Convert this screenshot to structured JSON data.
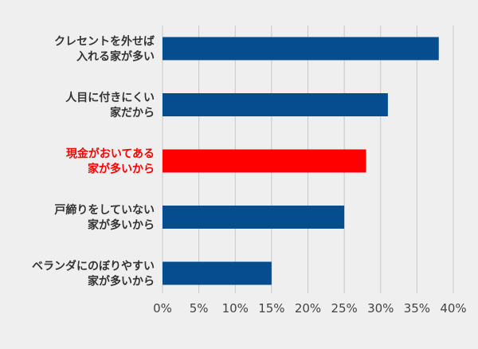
{
  "chart_data": {
    "type": "bar",
    "orientation": "horizontal",
    "categories": [
      [
        "クレセントを外せば",
        "入れる家が多い"
      ],
      [
        "人目に付きにくい",
        "家だから"
      ],
      [
        "現金がおいてある",
        "家が多いから"
      ],
      [
        "戸締りをしていない",
        "家が多いから"
      ],
      [
        "ベランダにのぼりやすい",
        "家が多いから"
      ]
    ],
    "values": [
      38,
      31,
      28,
      25,
      15
    ],
    "highlight_index": 2,
    "xlim": [
      0,
      40
    ],
    "xticks": [
      0,
      5,
      10,
      15,
      20,
      25,
      30,
      35,
      40
    ],
    "tick_suffix": "%",
    "grid": "vertical",
    "title": "",
    "xlabel": "",
    "ylabel": "",
    "colors": {
      "bar": "#064d8f",
      "highlight": "#ff0000",
      "grid": "#c8c8c8",
      "label": "#333333",
      "highlight_label": "#ff0000",
      "background": "#efefef"
    }
  }
}
